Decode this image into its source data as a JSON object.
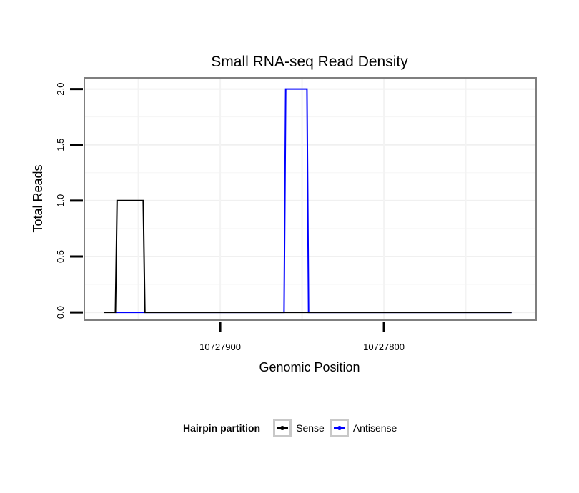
{
  "chart_data": {
    "type": "line",
    "title": "Small RNA-seq Read Density",
    "xlabel": "Genomic Position",
    "ylabel": "Total Reads",
    "x_reversed": true,
    "xlim": [
      10727983,
      10727707
    ],
    "ylim": [
      -0.07,
      2.1
    ],
    "xticks": [
      10727900,
      10727800
    ],
    "xtick_labels": [
      "10727900",
      "10727800"
    ],
    "yticks": [
      0.0,
      0.5,
      1.0,
      1.5,
      2.0
    ],
    "ytick_labels": [
      "0.0",
      "0.5",
      "1.0",
      "1.5",
      "2.0"
    ],
    "grid": true,
    "legend": {
      "title": "Hairpin partition",
      "position": "bottom",
      "entries": [
        "Sense",
        "Antisense"
      ]
    },
    "series": [
      {
        "name": "Sense",
        "color": "#000000",
        "x": [
          10727971,
          10727964,
          10727963,
          10727947,
          10727946,
          10727722
        ],
        "y": [
          0,
          0,
          1,
          1,
          0,
          0
        ]
      },
      {
        "name": "Antisense",
        "color": "#0000ff",
        "x": [
          10727964,
          10727947,
          10727861,
          10727860,
          10727847,
          10727846,
          10727722
        ],
        "y": [
          0,
          0,
          0,
          2,
          2,
          0,
          0
        ]
      }
    ]
  }
}
